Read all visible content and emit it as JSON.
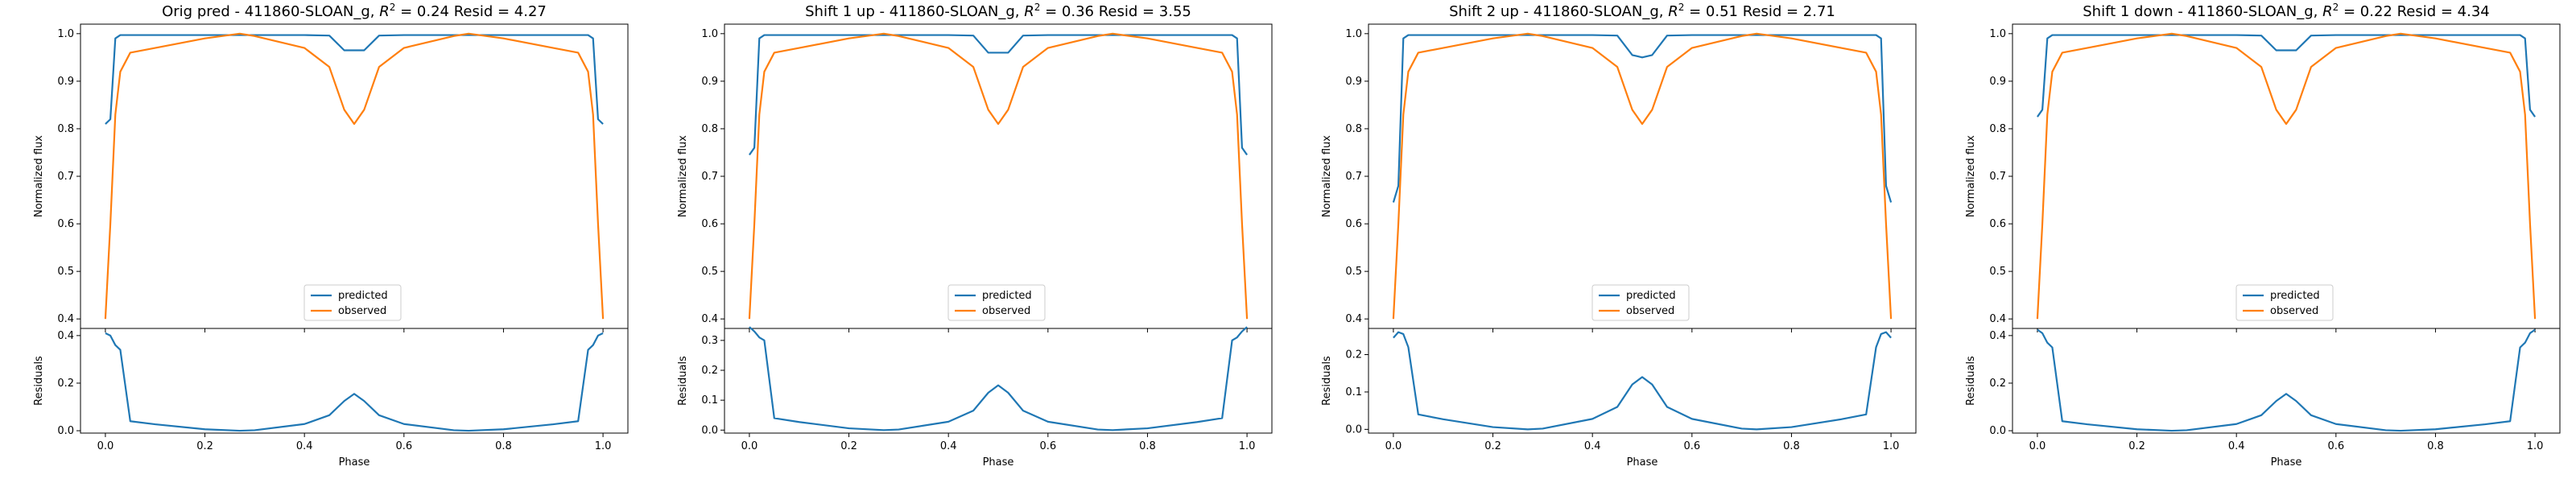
{
  "figure": {
    "panels": [
      {
        "title_prefix": "Orig pred - 411860-SLOAN_g, ",
        "r2_text": "0.24",
        "resid_text": " Resid = 4.27"
      },
      {
        "title_prefix": "Shift 1 up - 411860-SLOAN_g, ",
        "r2_text": "0.36",
        "resid_text": " Resid = 3.55"
      },
      {
        "title_prefix": "Shift 2 up - 411860-SLOAN_g, ",
        "r2_text": "0.51",
        "resid_text": " Resid = 2.71"
      },
      {
        "title_prefix": "Shift 1 down - 411860-SLOAN_g, ",
        "r2_text": "0.22",
        "resid_text": " Resid = 4.34"
      }
    ],
    "r2_symbol": "R",
    "r2_superscript": "2",
    "r2_equals": " = "
  },
  "colors": {
    "predicted": "#1f77b4",
    "observed": "#ff7f0e"
  },
  "chart_data": [
    {
      "type": "line",
      "title": "Orig pred - 411860-SLOAN_g, R^2 = 0.24 Resid = 4.27",
      "ylabel": "Normalized flux",
      "xlim": [
        -0.05,
        1.05
      ],
      "ylim": [
        0.38,
        1.02
      ],
      "yticks": [
        0.4,
        0.5,
        0.6,
        0.7,
        0.8,
        0.9,
        1.0
      ],
      "ytick_labels": [
        "0.4",
        "0.5",
        "0.6",
        "0.7",
        "0.8",
        "0.9",
        "1.0"
      ],
      "legend": "lower-center",
      "x": [
        0,
        0.01,
        0.02,
        0.03,
        0.05,
        0.1,
        0.2,
        0.27,
        0.3,
        0.4,
        0.45,
        0.48,
        0.5,
        0.52,
        0.55,
        0.6,
        0.7,
        0.73,
        0.8,
        0.9,
        0.95,
        0.97,
        0.98,
        0.99,
        1.0
      ],
      "series": [
        {
          "name": "predicted",
          "values": [
            0.81,
            0.82,
            0.99,
            0.997,
            0.997,
            0.997,
            0.997,
            0.997,
            0.997,
            0.997,
            0.996,
            0.965,
            0.965,
            0.965,
            0.996,
            0.997,
            0.997,
            0.997,
            0.997,
            0.997,
            0.997,
            0.997,
            0.99,
            0.82,
            0.81
          ]
        },
        {
          "name": "observed",
          "values": [
            0.4,
            0.6,
            0.83,
            0.92,
            0.96,
            0.97,
            0.99,
            1.0,
            0.995,
            0.97,
            0.93,
            0.84,
            0.81,
            0.84,
            0.93,
            0.97,
            0.995,
            1.0,
            0.99,
            0.97,
            0.96,
            0.92,
            0.83,
            0.6,
            0.4
          ]
        }
      ],
      "residuals": {
        "ylabel": "Residuals",
        "xlabel": "Phase",
        "ylim": [
          -0.01,
          0.43
        ],
        "yticks": [
          0.0,
          0.2,
          0.4
        ],
        "ytick_labels": [
          "0.0",
          "0.2",
          "0.4"
        ],
        "xticks": [
          0.0,
          0.2,
          0.4,
          0.6,
          0.8,
          1.0
        ],
        "xtick_labels": [
          "0.0",
          "0.2",
          "0.4",
          "0.6",
          "0.8",
          "1.0"
        ],
        "values": [
          0.41,
          0.4,
          0.36,
          0.34,
          0.04,
          0.027,
          0.006,
          0.0,
          0.002,
          0.028,
          0.065,
          0.125,
          0.155,
          0.125,
          0.065,
          0.028,
          0.002,
          0.0,
          0.006,
          0.027,
          0.04,
          0.34,
          0.36,
          0.4,
          0.41
        ]
      }
    },
    {
      "type": "line",
      "title": "Shift 1 up - 411860-SLOAN_g, R^2 = 0.36 Resid = 3.55",
      "ylabel": "Normalized flux",
      "xlim": [
        -0.05,
        1.05
      ],
      "ylim": [
        0.38,
        1.02
      ],
      "yticks": [
        0.4,
        0.5,
        0.6,
        0.7,
        0.8,
        0.9,
        1.0
      ],
      "ytick_labels": [
        "0.4",
        "0.5",
        "0.6",
        "0.7",
        "0.8",
        "0.9",
        "1.0"
      ],
      "legend": "lower-center",
      "x": [
        0,
        0.01,
        0.02,
        0.03,
        0.05,
        0.1,
        0.2,
        0.27,
        0.3,
        0.4,
        0.45,
        0.48,
        0.5,
        0.52,
        0.55,
        0.6,
        0.7,
        0.73,
        0.8,
        0.9,
        0.95,
        0.97,
        0.98,
        0.99,
        1.0
      ],
      "series": [
        {
          "name": "predicted",
          "values": [
            0.745,
            0.76,
            0.99,
            0.997,
            0.997,
            0.997,
            0.997,
            0.997,
            0.997,
            0.997,
            0.996,
            0.96,
            0.96,
            0.96,
            0.996,
            0.997,
            0.997,
            0.997,
            0.997,
            0.997,
            0.997,
            0.997,
            0.99,
            0.76,
            0.745
          ]
        },
        {
          "name": "observed",
          "values": [
            0.4,
            0.6,
            0.83,
            0.92,
            0.96,
            0.97,
            0.99,
            1.0,
            0.995,
            0.97,
            0.93,
            0.84,
            0.81,
            0.84,
            0.93,
            0.97,
            0.995,
            1.0,
            0.99,
            0.97,
            0.96,
            0.92,
            0.83,
            0.6,
            0.4
          ]
        }
      ],
      "residuals": {
        "ylabel": "Residuals",
        "xlabel": "Phase",
        "ylim": [
          -0.01,
          0.34
        ],
        "yticks": [
          0.0,
          0.1,
          0.2,
          0.3
        ],
        "ytick_labels": [
          "0.0",
          "0.1",
          "0.2",
          "0.3"
        ],
        "xticks": [
          0.0,
          0.2,
          0.4,
          0.6,
          0.8,
          1.0
        ],
        "xtick_labels": [
          "0.0",
          "0.2",
          "0.4",
          "0.6",
          "0.8",
          "1.0"
        ],
        "values": [
          0.345,
          0.33,
          0.31,
          0.3,
          0.04,
          0.027,
          0.006,
          0.0,
          0.002,
          0.028,
          0.065,
          0.125,
          0.15,
          0.125,
          0.065,
          0.028,
          0.002,
          0.0,
          0.006,
          0.027,
          0.04,
          0.3,
          0.31,
          0.33,
          0.345
        ]
      }
    },
    {
      "type": "line",
      "title": "Shift 2 up - 411860-SLOAN_g, R^2 = 0.51 Resid = 2.71",
      "ylabel": "Normalized flux",
      "xlim": [
        -0.05,
        1.05
      ],
      "ylim": [
        0.38,
        1.02
      ],
      "yticks": [
        0.4,
        0.5,
        0.6,
        0.7,
        0.8,
        0.9,
        1.0
      ],
      "ytick_labels": [
        "0.4",
        "0.5",
        "0.6",
        "0.7",
        "0.8",
        "0.9",
        "1.0"
      ],
      "legend": "lower-center",
      "x": [
        0,
        0.01,
        0.02,
        0.03,
        0.05,
        0.1,
        0.2,
        0.27,
        0.3,
        0.4,
        0.45,
        0.48,
        0.5,
        0.52,
        0.55,
        0.6,
        0.7,
        0.73,
        0.8,
        0.9,
        0.95,
        0.97,
        0.98,
        0.99,
        1.0
      ],
      "series": [
        {
          "name": "predicted",
          "values": [
            0.645,
            0.68,
            0.99,
            0.997,
            0.997,
            0.997,
            0.997,
            0.997,
            0.997,
            0.997,
            0.996,
            0.955,
            0.95,
            0.955,
            0.996,
            0.997,
            0.997,
            0.997,
            0.997,
            0.997,
            0.997,
            0.997,
            0.99,
            0.68,
            0.645
          ]
        },
        {
          "name": "observed",
          "values": [
            0.4,
            0.6,
            0.83,
            0.92,
            0.96,
            0.97,
            0.99,
            1.0,
            0.995,
            0.97,
            0.93,
            0.84,
            0.81,
            0.84,
            0.93,
            0.97,
            0.995,
            1.0,
            0.99,
            0.97,
            0.96,
            0.92,
            0.83,
            0.6,
            0.4
          ]
        }
      ],
      "residuals": {
        "ylabel": "Residuals",
        "xlabel": "Phase",
        "ylim": [
          -0.01,
          0.27
        ],
        "yticks": [
          0.0,
          0.1,
          0.2
        ],
        "ytick_labels": [
          "0.0",
          "0.1",
          "0.2"
        ],
        "xticks": [
          0.0,
          0.2,
          0.4,
          0.6,
          0.8,
          1.0
        ],
        "xtick_labels": [
          "0.0",
          "0.2",
          "0.4",
          "0.6",
          "0.8",
          "1.0"
        ],
        "values": [
          0.245,
          0.26,
          0.255,
          0.22,
          0.04,
          0.027,
          0.006,
          0.0,
          0.002,
          0.028,
          0.06,
          0.12,
          0.14,
          0.12,
          0.06,
          0.028,
          0.002,
          0.0,
          0.006,
          0.027,
          0.04,
          0.22,
          0.255,
          0.26,
          0.245
        ]
      }
    },
    {
      "type": "line",
      "title": "Shift 1 down - 411860-SLOAN_g, R^2 = 0.22 Resid = 4.34",
      "ylabel": "Normalized flux",
      "xlim": [
        -0.05,
        1.05
      ],
      "ylim": [
        0.38,
        1.02
      ],
      "yticks": [
        0.4,
        0.5,
        0.6,
        0.7,
        0.8,
        0.9,
        1.0
      ],
      "ytick_labels": [
        "0.4",
        "0.5",
        "0.6",
        "0.7",
        "0.8",
        "0.9",
        "1.0"
      ],
      "legend": "lower-center",
      "x": [
        0,
        0.01,
        0.02,
        0.03,
        0.05,
        0.1,
        0.2,
        0.27,
        0.3,
        0.4,
        0.45,
        0.48,
        0.5,
        0.52,
        0.55,
        0.6,
        0.7,
        0.73,
        0.8,
        0.9,
        0.95,
        0.97,
        0.98,
        0.99,
        1.0
      ],
      "series": [
        {
          "name": "predicted",
          "values": [
            0.825,
            0.84,
            0.99,
            0.997,
            0.997,
            0.997,
            0.997,
            0.997,
            0.997,
            0.997,
            0.996,
            0.965,
            0.965,
            0.965,
            0.996,
            0.997,
            0.997,
            0.997,
            0.997,
            0.997,
            0.997,
            0.997,
            0.99,
            0.84,
            0.825
          ]
        },
        {
          "name": "observed",
          "values": [
            0.4,
            0.6,
            0.83,
            0.92,
            0.96,
            0.97,
            0.99,
            1.0,
            0.995,
            0.97,
            0.93,
            0.84,
            0.81,
            0.84,
            0.93,
            0.97,
            0.995,
            1.0,
            0.99,
            0.97,
            0.96,
            0.92,
            0.83,
            0.6,
            0.4
          ]
        }
      ],
      "residuals": {
        "ylabel": "Residuals",
        "xlabel": "Phase",
        "ylim": [
          -0.01,
          0.43
        ],
        "yticks": [
          0.0,
          0.2,
          0.4
        ],
        "ytick_labels": [
          "0.0",
          "0.2",
          "0.4"
        ],
        "xticks": [
          0.0,
          0.2,
          0.4,
          0.6,
          0.8,
          1.0
        ],
        "xtick_labels": [
          "0.0",
          "0.2",
          "0.4",
          "0.6",
          "0.8",
          "1.0"
        ],
        "values": [
          0.425,
          0.41,
          0.37,
          0.35,
          0.04,
          0.027,
          0.006,
          0.0,
          0.002,
          0.028,
          0.065,
          0.125,
          0.155,
          0.125,
          0.065,
          0.028,
          0.002,
          0.0,
          0.006,
          0.027,
          0.04,
          0.35,
          0.37,
          0.41,
          0.425
        ]
      }
    }
  ]
}
